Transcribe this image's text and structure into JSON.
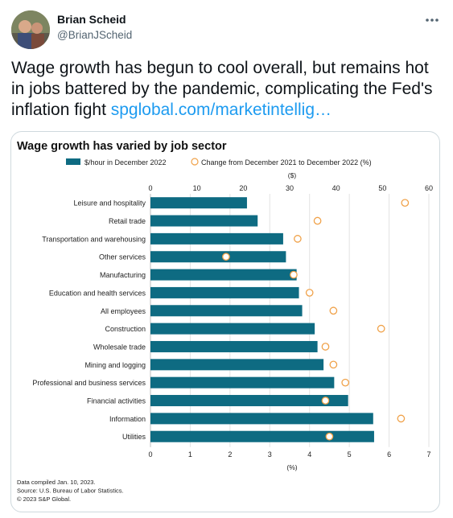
{
  "tweet": {
    "author_name": "Brian Scheid",
    "author_handle": "@BrianJScheid",
    "text": "Wage growth has begun to cool overall, but remains hot in jobs battered by the pandemic, complicating the Fed's inflation fight ",
    "link_text": "spglobal.com/marketintellig…"
  },
  "chart_data": {
    "type": "bar",
    "title": "Wage growth has varied by job sector",
    "categories": [
      "Leisure and hospitality",
      "Retail trade",
      "Transportation and warehousing",
      "Other services",
      "Manufacturing",
      "Education and health services",
      "All employees",
      "Construction",
      "Wholesale trade",
      "Mining and logging",
      "Professional and business services",
      "Financial activities",
      "Information",
      "Utilities"
    ],
    "series": [
      {
        "name": "$/hour in December 2022",
        "color": "#0e6b82",
        "axis": "top",
        "unit_label": "($)",
        "xlim": [
          0,
          60
        ],
        "ticks": [
          0,
          10,
          20,
          30,
          40,
          50,
          60
        ],
        "values": [
          20.8,
          23.1,
          28.6,
          29.2,
          31.5,
          32.0,
          32.7,
          35.4,
          36.0,
          37.3,
          39.6,
          42.6,
          48.0,
          48.2
        ]
      },
      {
        "name": "Change from December 2021 to December 2022 (%)",
        "color": "#f0a24a",
        "axis": "bottom",
        "unit_label": "(%)",
        "xlim": [
          0,
          7
        ],
        "ticks": [
          0,
          1,
          2,
          3,
          4,
          5,
          6,
          7
        ],
        "values": [
          6.4,
          4.2,
          3.7,
          1.9,
          3.6,
          4.0,
          4.6,
          5.8,
          4.4,
          4.6,
          4.9,
          4.4,
          6.3,
          4.5
        ]
      }
    ],
    "grid": true,
    "legend_position": "top",
    "footnotes": [
      "Data compiled Jan. 10, 2023.",
      "Source: U.S. Bureau of Labor Statistics.",
      "© 2023 S&P Global."
    ]
  }
}
